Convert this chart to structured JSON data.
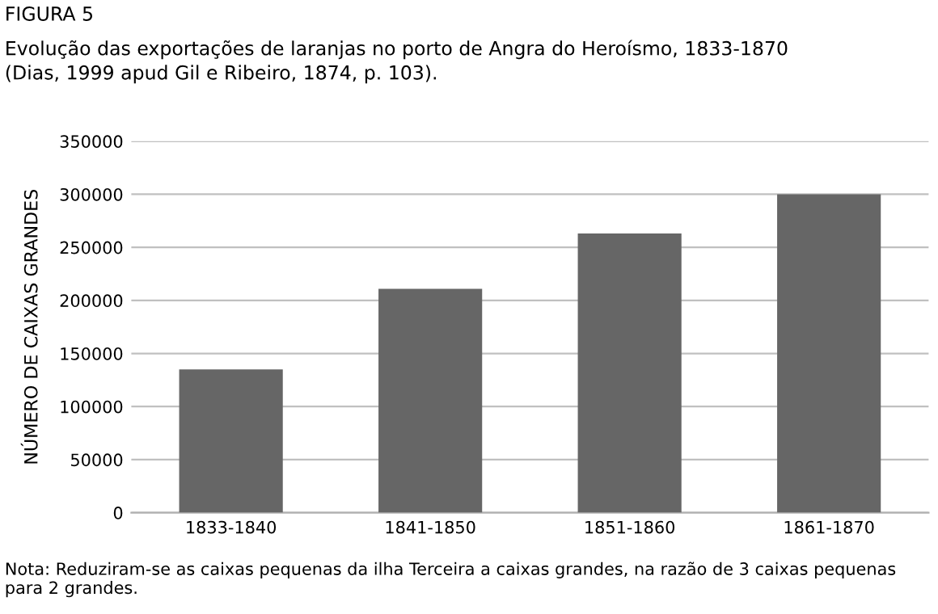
{
  "chart_data": {
    "type": "bar",
    "title": "FIGURA 5",
    "subtitle": "Evolução das exportações de laranjas no porto de Angra do Heroísmo, 1833-1870\n(Dias, 1999 apud Gil e Ribeiro, 1874, p. 103).",
    "ylabel": "NÚMERO DE CAIXAS GRANDES",
    "categories": [
      "1833-1840",
      "1841-1850",
      "1851-1860",
      "1861-1870"
    ],
    "values": [
      135000,
      211000,
      263000,
      300000
    ],
    "color": "#666666",
    "ylim": [
      0,
      350000
    ],
    "yticks": [
      0,
      50000,
      100000,
      150000,
      200000,
      250000,
      300000,
      350000
    ],
    "grid": "y",
    "annotations": [
      "Nota: Reduziram-se as caixas pequenas da ilha Terceira a caixas grandes, na razão de 3 caixas pequenas para 2 grandes."
    ]
  }
}
